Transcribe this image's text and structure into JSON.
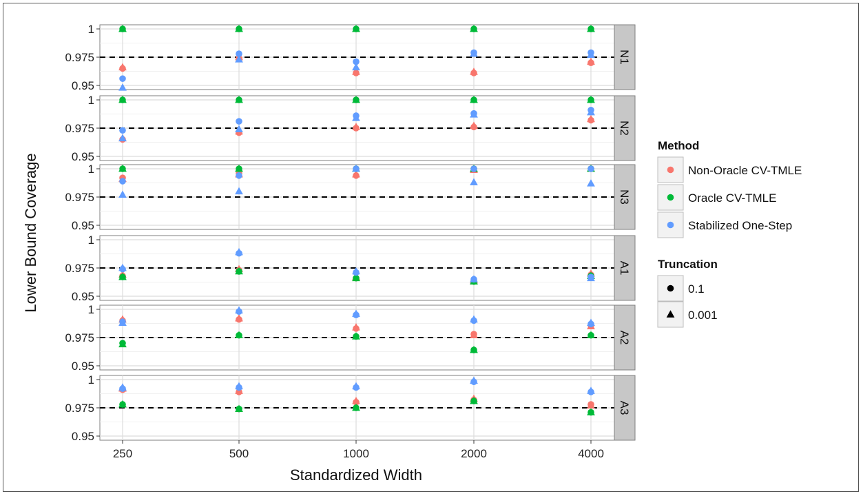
{
  "chart_data": {
    "type": "scatter",
    "xlabel": "Standardized Width",
    "ylabel": "Lower Bound Coverage",
    "categories": [
      "250",
      "500",
      "1000",
      "2000",
      "4000"
    ],
    "ylim": [
      0.95,
      1.0
    ],
    "yticks": [
      "0.95",
      "0.975",
      "1"
    ],
    "reference_line": 0.975,
    "grid": true,
    "legend_position": "right",
    "methods": [
      {
        "name": "Non-Oracle CV-TMLE",
        "color": "#F8766D"
      },
      {
        "name": "Oracle CV-TMLE",
        "color": "#00BA38"
      },
      {
        "name": "Stabilized One-Step",
        "color": "#619CFF"
      }
    ],
    "truncations": [
      {
        "name": "0.1",
        "shape": "circle"
      },
      {
        "name": "0.001",
        "shape": "triangle"
      }
    ],
    "legend_titles": {
      "method": "Method",
      "truncation": "Truncation"
    },
    "panels": [
      {
        "label": "N1",
        "series": [
          {
            "method": "Non-Oracle CV-TMLE",
            "truncation": "0.1",
            "values": [
              0.965,
              0.974,
              0.961,
              0.961,
              0.97
            ]
          },
          {
            "method": "Non-Oracle CV-TMLE",
            "truncation": "0.001",
            "values": [
              0.966,
              0.975,
              0.962,
              0.962,
              0.971
            ]
          },
          {
            "method": "Oracle CV-TMLE",
            "truncation": "0.1",
            "values": [
              1.0,
              1.0,
              1.0,
              1.0,
              1.0
            ]
          },
          {
            "method": "Oracle CV-TMLE",
            "truncation": "0.001",
            "values": [
              1.0,
              1.0,
              1.0,
              1.0,
              1.0
            ]
          },
          {
            "method": "Stabilized One-Step",
            "truncation": "0.1",
            "values": [
              0.956,
              0.978,
              0.971,
              0.979,
              0.979
            ]
          },
          {
            "method": "Stabilized One-Step",
            "truncation": "0.001",
            "values": [
              0.948,
              0.973,
              0.966,
              0.978,
              0.977
            ]
          }
        ]
      },
      {
        "label": "N2",
        "series": [
          {
            "method": "Non-Oracle CV-TMLE",
            "truncation": "0.1",
            "values": [
              0.965,
              0.971,
              0.975,
              0.976,
              0.982
            ]
          },
          {
            "method": "Non-Oracle CV-TMLE",
            "truncation": "0.001",
            "values": [
              0.966,
              0.972,
              0.976,
              0.977,
              0.983
            ]
          },
          {
            "method": "Oracle CV-TMLE",
            "truncation": "0.1",
            "values": [
              1.0,
              1.0,
              1.0,
              1.0,
              1.0
            ]
          },
          {
            "method": "Oracle CV-TMLE",
            "truncation": "0.001",
            "values": [
              1.0,
              1.0,
              1.0,
              1.0,
              1.0
            ]
          },
          {
            "method": "Stabilized One-Step",
            "truncation": "0.1",
            "values": [
              0.973,
              0.981,
              0.986,
              0.988,
              0.991
            ]
          },
          {
            "method": "Stabilized One-Step",
            "truncation": "0.001",
            "values": [
              0.966,
              0.974,
              0.984,
              0.987,
              0.989
            ]
          }
        ]
      },
      {
        "label": "N3",
        "series": [
          {
            "method": "Non-Oracle CV-TMLE",
            "truncation": "0.1",
            "values": [
              0.992,
              0.996,
              0.994,
              1.0,
              1.0
            ]
          },
          {
            "method": "Non-Oracle CV-TMLE",
            "truncation": "0.001",
            "values": [
              0.991,
              0.995,
              0.995,
              0.999,
              1.0
            ]
          },
          {
            "method": "Oracle CV-TMLE",
            "truncation": "0.1",
            "values": [
              1.0,
              1.0,
              1.0,
              1.0,
              1.0
            ]
          },
          {
            "method": "Oracle CV-TMLE",
            "truncation": "0.001",
            "values": [
              1.0,
              1.0,
              1.0,
              1.0,
              1.0
            ]
          },
          {
            "method": "Stabilized One-Step",
            "truncation": "0.1",
            "values": [
              0.989,
              0.994,
              1.0,
              1.0,
              1.0
            ]
          },
          {
            "method": "Stabilized One-Step",
            "truncation": "0.001",
            "values": [
              0.977,
              0.98,
              1.0,
              0.988,
              0.987
            ]
          }
        ]
      },
      {
        "label": "A1",
        "series": [
          {
            "method": "Non-Oracle CV-TMLE",
            "truncation": "0.1",
            "values": [
              0.968,
              0.973,
              0.966,
              0.963,
              0.969
            ]
          },
          {
            "method": "Non-Oracle CV-TMLE",
            "truncation": "0.001",
            "values": [
              0.969,
              0.974,
              0.967,
              0.964,
              0.97
            ]
          },
          {
            "method": "Oracle CV-TMLE",
            "truncation": "0.1",
            "values": [
              0.967,
              0.972,
              0.966,
              0.963,
              0.968
            ]
          },
          {
            "method": "Oracle CV-TMLE",
            "truncation": "0.001",
            "values": [
              0.967,
              0.972,
              0.966,
              0.963,
              0.968
            ]
          },
          {
            "method": "Stabilized One-Step",
            "truncation": "0.1",
            "values": [
              0.974,
              0.988,
              0.971,
              0.965,
              0.967
            ]
          },
          {
            "method": "Stabilized One-Step",
            "truncation": "0.001",
            "values": [
              0.975,
              0.989,
              0.972,
              0.965,
              0.966
            ]
          }
        ]
      },
      {
        "label": "A2",
        "series": [
          {
            "method": "Non-Oracle CV-TMLE",
            "truncation": "0.1",
            "values": [
              0.99,
              0.991,
              0.983,
              0.978,
              0.986
            ]
          },
          {
            "method": "Non-Oracle CV-TMLE",
            "truncation": "0.001",
            "values": [
              0.991,
              0.992,
              0.984,
              0.977,
              0.985
            ]
          },
          {
            "method": "Oracle CV-TMLE",
            "truncation": "0.1",
            "values": [
              0.97,
              0.977,
              0.976,
              0.964,
              0.977
            ]
          },
          {
            "method": "Oracle CV-TMLE",
            "truncation": "0.001",
            "values": [
              0.969,
              0.977,
              0.976,
              0.964,
              0.977
            ]
          },
          {
            "method": "Stabilized One-Step",
            "truncation": "0.1",
            "values": [
              0.989,
              0.998,
              0.995,
              0.99,
              0.987
            ]
          },
          {
            "method": "Stabilized One-Step",
            "truncation": "0.001",
            "values": [
              0.988,
              0.999,
              0.996,
              0.991,
              0.988
            ]
          }
        ]
      },
      {
        "label": "A3",
        "series": [
          {
            "method": "Non-Oracle CV-TMLE",
            "truncation": "0.1",
            "values": [
              0.991,
              0.989,
              0.98,
              0.982,
              0.978
            ]
          },
          {
            "method": "Non-Oracle CV-TMLE",
            "truncation": "0.001",
            "values": [
              0.992,
              0.99,
              0.981,
              0.983,
              0.977
            ]
          },
          {
            "method": "Oracle CV-TMLE",
            "truncation": "0.1",
            "values": [
              0.978,
              0.974,
              0.975,
              0.981,
              0.971
            ]
          },
          {
            "method": "Oracle CV-TMLE",
            "truncation": "0.001",
            "values": [
              0.978,
              0.974,
              0.975,
              0.981,
              0.971
            ]
          },
          {
            "method": "Stabilized One-Step",
            "truncation": "0.1",
            "values": [
              0.992,
              0.993,
              0.993,
              0.998,
              0.989
            ]
          },
          {
            "method": "Stabilized One-Step",
            "truncation": "0.001",
            "values": [
              0.993,
              0.994,
              0.994,
              0.999,
              0.99
            ]
          }
        ]
      }
    ]
  }
}
